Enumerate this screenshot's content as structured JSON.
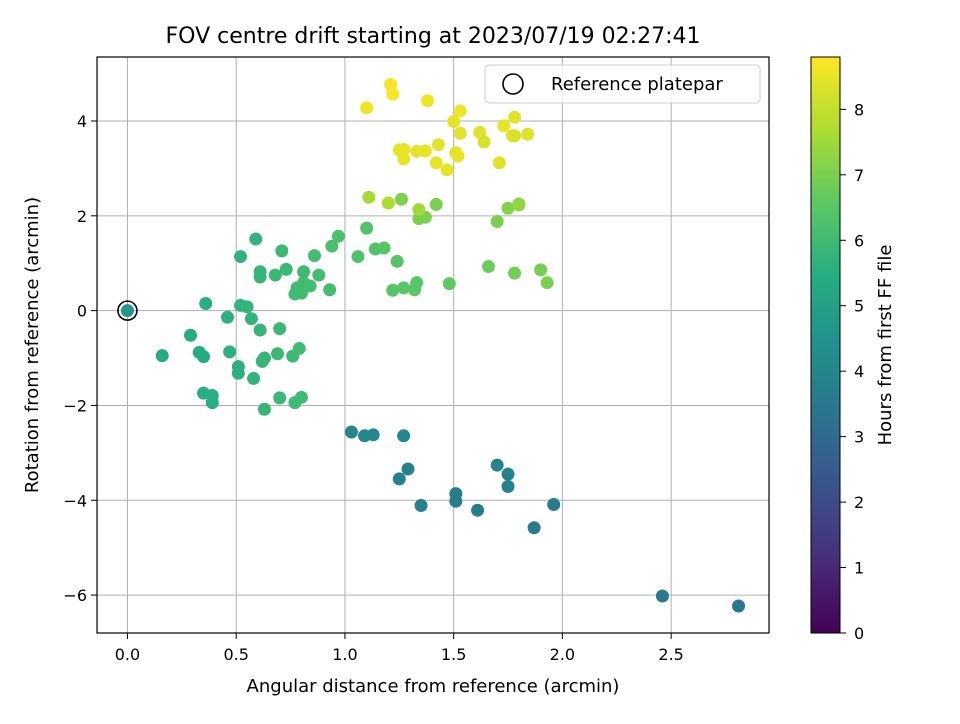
{
  "chart_data": {
    "type": "scatter",
    "title": "FOV centre drift starting at 2023/07/19 02:27:41",
    "xlabel": "Angular distance from reference (arcmin)",
    "ylabel": "Rotation from reference (arcmin)",
    "xlim": [
      -0.14,
      2.95
    ],
    "ylim": [
      -6.8,
      5.35
    ],
    "xticks": [
      0.0,
      0.5,
      1.0,
      1.5,
      2.0,
      2.5
    ],
    "xtick_labels": [
      "0.0",
      "0.5",
      "1.0",
      "1.5",
      "2.0",
      "2.5"
    ],
    "yticks": [
      -6,
      -4,
      -2,
      0,
      2,
      4
    ],
    "ytick_labels": [
      "−6",
      "−4",
      "−2",
      "0",
      "2",
      "4"
    ],
    "grid": true,
    "legend": {
      "position": "top-right",
      "entries": [
        "Reference platepar"
      ]
    },
    "reference_point": {
      "x": 0.0,
      "y": 0.0
    },
    "colorbar": {
      "label": "Hours from first FF file",
      "colormap": "viridis",
      "range": [
        0,
        8.8
      ],
      "ticks": [
        0,
        1,
        2,
        3,
        4,
        5,
        6,
        7,
        8
      ],
      "tick_labels": [
        "0",
        "1",
        "2",
        "3",
        "4",
        "5",
        "6",
        "7",
        "8"
      ]
    },
    "points": [
      {
        "x": 0.0,
        "y": 0.0,
        "c": 4.6
      },
      {
        "x": 2.81,
        "y": -6.23,
        "c": 3.5
      },
      {
        "x": 2.46,
        "y": -6.02,
        "c": 3.5
      },
      {
        "x": 1.87,
        "y": -4.58,
        "c": 3.6
      },
      {
        "x": 1.96,
        "y": -4.09,
        "c": 3.6
      },
      {
        "x": 1.61,
        "y": -4.21,
        "c": 3.7
      },
      {
        "x": 1.51,
        "y": -4.02,
        "c": 3.7
      },
      {
        "x": 1.51,
        "y": -3.86,
        "c": 3.7
      },
      {
        "x": 1.35,
        "y": -4.11,
        "c": 3.8
      },
      {
        "x": 1.75,
        "y": -3.71,
        "c": 3.8
      },
      {
        "x": 1.75,
        "y": -3.45,
        "c": 3.8
      },
      {
        "x": 1.7,
        "y": -3.26,
        "c": 3.9
      },
      {
        "x": 1.29,
        "y": -3.34,
        "c": 3.9
      },
      {
        "x": 1.25,
        "y": -3.55,
        "c": 3.9
      },
      {
        "x": 1.27,
        "y": -2.64,
        "c": 4.0
      },
      {
        "x": 1.03,
        "y": -2.56,
        "c": 4.0
      },
      {
        "x": 1.09,
        "y": -2.64,
        "c": 4.0
      },
      {
        "x": 1.13,
        "y": -2.62,
        "c": 4.0
      },
      {
        "x": 0.16,
        "y": -0.95,
        "c": 5.3
      },
      {
        "x": 0.29,
        "y": -0.52,
        "c": 5.4
      },
      {
        "x": 0.33,
        "y": -0.88,
        "c": 5.4
      },
      {
        "x": 0.35,
        "y": -0.97,
        "c": 5.4
      },
      {
        "x": 0.36,
        "y": 0.15,
        "c": 5.5
      },
      {
        "x": 0.35,
        "y": -1.74,
        "c": 5.5
      },
      {
        "x": 0.39,
        "y": -1.79,
        "c": 5.5
      },
      {
        "x": 0.39,
        "y": -1.94,
        "c": 5.5
      },
      {
        "x": 0.46,
        "y": -0.14,
        "c": 5.6
      },
      {
        "x": 0.47,
        "y": -0.87,
        "c": 5.6
      },
      {
        "x": 0.51,
        "y": -1.18,
        "c": 5.6
      },
      {
        "x": 0.51,
        "y": -1.32,
        "c": 5.6
      },
      {
        "x": 0.52,
        "y": 1.14,
        "c": 5.7
      },
      {
        "x": 0.52,
        "y": 0.11,
        "c": 5.7
      },
      {
        "x": 0.55,
        "y": 0.08,
        "c": 5.7
      },
      {
        "x": 0.57,
        "y": -0.17,
        "c": 5.7
      },
      {
        "x": 0.58,
        "y": -1.43,
        "c": 5.7
      },
      {
        "x": 0.59,
        "y": 1.51,
        "c": 5.7
      },
      {
        "x": 0.61,
        "y": 0.82,
        "c": 5.8
      },
      {
        "x": 0.61,
        "y": 0.71,
        "c": 5.8
      },
      {
        "x": 0.61,
        "y": -0.41,
        "c": 5.8
      },
      {
        "x": 0.62,
        "y": -1.07,
        "c": 5.8
      },
      {
        "x": 0.63,
        "y": -1.0,
        "c": 5.8
      },
      {
        "x": 0.63,
        "y": -2.08,
        "c": 5.8
      },
      {
        "x": 0.68,
        "y": 0.75,
        "c": 5.9
      },
      {
        "x": 0.69,
        "y": -0.91,
        "c": 5.9
      },
      {
        "x": 0.7,
        "y": -0.38,
        "c": 5.9
      },
      {
        "x": 0.7,
        "y": -1.84,
        "c": 5.9
      },
      {
        "x": 0.71,
        "y": 1.26,
        "c": 5.9
      },
      {
        "x": 0.73,
        "y": 0.87,
        "c": 5.9
      },
      {
        "x": 0.76,
        "y": -0.96,
        "c": 5.9
      },
      {
        "x": 0.77,
        "y": 0.35,
        "c": 6.0
      },
      {
        "x": 0.77,
        "y": -1.94,
        "c": 6.0
      },
      {
        "x": 0.78,
        "y": 0.48,
        "c": 6.0
      },
      {
        "x": 0.79,
        "y": -0.8,
        "c": 6.0
      },
      {
        "x": 0.8,
        "y": -1.83,
        "c": 6.0
      },
      {
        "x": 0.8,
        "y": 0.37,
        "c": 6.0
      },
      {
        "x": 0.81,
        "y": 0.82,
        "c": 6.0
      },
      {
        "x": 0.81,
        "y": 0.59,
        "c": 6.0
      },
      {
        "x": 0.84,
        "y": 0.52,
        "c": 6.1
      },
      {
        "x": 0.86,
        "y": 1.16,
        "c": 6.1
      },
      {
        "x": 0.88,
        "y": 0.75,
        "c": 6.1
      },
      {
        "x": 0.93,
        "y": 0.44,
        "c": 6.1
      },
      {
        "x": 0.94,
        "y": 1.36,
        "c": 6.2
      },
      {
        "x": 0.97,
        "y": 1.57,
        "c": 6.2
      },
      {
        "x": 1.06,
        "y": 1.14,
        "c": 6.3
      },
      {
        "x": 1.1,
        "y": 1.74,
        "c": 6.3
      },
      {
        "x": 1.14,
        "y": 1.3,
        "c": 6.3
      },
      {
        "x": 1.18,
        "y": 1.32,
        "c": 6.4
      },
      {
        "x": 1.22,
        "y": 0.43,
        "c": 6.4
      },
      {
        "x": 1.24,
        "y": 1.04,
        "c": 6.4
      },
      {
        "x": 1.27,
        "y": 0.48,
        "c": 6.5
      },
      {
        "x": 1.32,
        "y": 0.44,
        "c": 6.5
      },
      {
        "x": 1.33,
        "y": 0.59,
        "c": 6.5
      },
      {
        "x": 1.48,
        "y": 0.57,
        "c": 6.6
      },
      {
        "x": 1.66,
        "y": 0.93,
        "c": 6.8
      },
      {
        "x": 1.78,
        "y": 0.79,
        "c": 6.9
      },
      {
        "x": 1.9,
        "y": 0.86,
        "c": 6.9
      },
      {
        "x": 1.93,
        "y": 0.59,
        "c": 7.0
      },
      {
        "x": 1.26,
        "y": 2.35,
        "c": 7.0
      },
      {
        "x": 1.37,
        "y": 1.97,
        "c": 7.0
      },
      {
        "x": 1.34,
        "y": 1.94,
        "c": 7.0
      },
      {
        "x": 1.42,
        "y": 2.24,
        "c": 7.0
      },
      {
        "x": 1.7,
        "y": 1.88,
        "c": 7.0
      },
      {
        "x": 1.75,
        "y": 2.16,
        "c": 7.1
      },
      {
        "x": 1.8,
        "y": 2.25,
        "c": 7.1
      },
      {
        "x": 1.8,
        "y": 2.23,
        "c": 7.3
      },
      {
        "x": 1.34,
        "y": 2.13,
        "c": 7.5
      },
      {
        "x": 1.11,
        "y": 2.39,
        "c": 7.6
      },
      {
        "x": 1.2,
        "y": 2.27,
        "c": 7.7
      },
      {
        "x": 1.27,
        "y": 3.4,
        "c": 8.5
      },
      {
        "x": 1.25,
        "y": 3.39,
        "c": 8.5
      },
      {
        "x": 1.27,
        "y": 3.2,
        "c": 8.5
      },
      {
        "x": 1.33,
        "y": 3.36,
        "c": 8.5
      },
      {
        "x": 1.37,
        "y": 3.37,
        "c": 8.5
      },
      {
        "x": 1.42,
        "y": 3.12,
        "c": 8.5
      },
      {
        "x": 1.43,
        "y": 3.5,
        "c": 8.4
      },
      {
        "x": 1.47,
        "y": 2.97,
        "c": 8.5
      },
      {
        "x": 1.5,
        "y": 3.99,
        "c": 8.5
      },
      {
        "x": 1.51,
        "y": 3.33,
        "c": 8.4
      },
      {
        "x": 1.52,
        "y": 3.26,
        "c": 8.5
      },
      {
        "x": 1.53,
        "y": 3.74,
        "c": 8.4
      },
      {
        "x": 1.53,
        "y": 4.21,
        "c": 8.6
      },
      {
        "x": 1.62,
        "y": 3.76,
        "c": 8.4
      },
      {
        "x": 1.64,
        "y": 3.56,
        "c": 8.3
      },
      {
        "x": 1.71,
        "y": 3.12,
        "c": 8.4
      },
      {
        "x": 1.73,
        "y": 3.9,
        "c": 8.5
      },
      {
        "x": 1.77,
        "y": 3.69,
        "c": 8.5
      },
      {
        "x": 1.78,
        "y": 3.69,
        "c": 8.3
      },
      {
        "x": 1.78,
        "y": 4.08,
        "c": 8.4
      },
      {
        "x": 1.84,
        "y": 3.72,
        "c": 8.4
      },
      {
        "x": 1.1,
        "y": 4.28,
        "c": 8.6
      },
      {
        "x": 1.21,
        "y": 4.77,
        "c": 8.7
      },
      {
        "x": 1.22,
        "y": 4.57,
        "c": 8.7
      },
      {
        "x": 1.38,
        "y": 4.43,
        "c": 8.6
      }
    ]
  }
}
